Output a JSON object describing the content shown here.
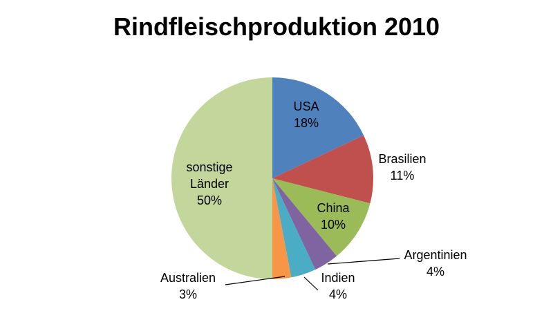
{
  "chart_data": {
    "type": "pie",
    "title": "Rindfleischproduktion 2010",
    "slices": [
      {
        "label": "USA",
        "value": 18,
        "value_label": "18%",
        "color": "#4f81bd"
      },
      {
        "label": "Brasilien",
        "value": 11,
        "value_label": "11%",
        "color": "#c0504d"
      },
      {
        "label": "China",
        "value": 10,
        "value_label": "10%",
        "color": "#9bbb59"
      },
      {
        "label": "Argentinien",
        "value": 4,
        "value_label": "4%",
        "color": "#8064a2"
      },
      {
        "label": "Indien",
        "value": 4,
        "value_label": "4%",
        "color": "#4bacc6"
      },
      {
        "label": "Australien",
        "value": 3,
        "value_label": "3%",
        "color": "#f79646"
      },
      {
        "label": "sonstige Länder",
        "value": 50,
        "value_label": "50%",
        "color": "#c3d69b"
      }
    ],
    "legend": "none",
    "data_labels": "category and percentage"
  }
}
